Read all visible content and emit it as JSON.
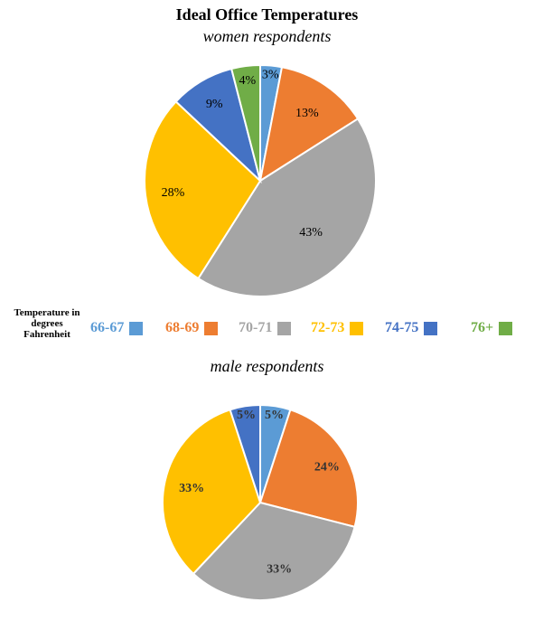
{
  "title": "Ideal Office Temperatures",
  "legend_title": "Temperature in degrees Fahrenheit",
  "colors": {
    "66-67": "#5B9BD5",
    "68-69": "#ED7D31",
    "70-71": "#A5A5A5",
    "72-73": "#FFC000",
    "74-75": "#4472C4",
    "76+": "#70AD47"
  },
  "legend": [
    "66-67",
    "68-69",
    "70-71",
    "72-73",
    "74-75",
    "76+"
  ],
  "chart_data": [
    {
      "type": "pie",
      "subtitle": "women respondents",
      "categories": [
        "66-67",
        "68-69",
        "70-71",
        "72-73",
        "74-75",
        "76+"
      ],
      "values": [
        3,
        13,
        43,
        28,
        9,
        4
      ],
      "labels": [
        "3%",
        "13%",
        "43%",
        "28%",
        "9%",
        "4%"
      ],
      "legend_position": "between charts"
    },
    {
      "type": "pie",
      "subtitle": "male respondents",
      "categories": [
        "66-67",
        "68-69",
        "70-71",
        "72-73",
        "74-75"
      ],
      "values": [
        5,
        24,
        33,
        33,
        5
      ],
      "labels": [
        "5%",
        "24%",
        "33%",
        "33%",
        "5%"
      ],
      "legend_position": "between charts"
    }
  ]
}
